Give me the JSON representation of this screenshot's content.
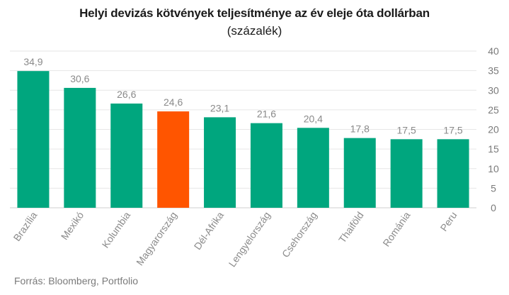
{
  "chart_data": {
    "type": "bar",
    "title": "Helyi devizás kötvények teljesítménye az év eleje óta dollárban",
    "subtitle": "(százalék)",
    "categories": [
      "Brazília",
      "Mexikó",
      "Kolumbia",
      "Magyarország",
      "Dél-Afrika",
      "Lengyelország",
      "Csehország",
      "Thaiföld",
      "Románia",
      "Peru"
    ],
    "values": [
      34.9,
      30.6,
      26.6,
      24.6,
      23.1,
      21.6,
      20.4,
      17.8,
      17.5,
      17.5
    ],
    "value_labels": [
      "34,9",
      "30,6",
      "26,6",
      "24,6",
      "23,1",
      "21,6",
      "20,4",
      "17,8",
      "17,5",
      "17,5"
    ],
    "ylim": [
      0,
      40
    ],
    "yticks": [
      0,
      5,
      10,
      15,
      20,
      25,
      30,
      35,
      40
    ],
    "y_axis_position": "right",
    "grid": true,
    "colors": {
      "default": "#00a67e",
      "highlight": "#ff5500"
    },
    "highlight_category": "Magyarország"
  },
  "source": "Forrás: Bloomberg, Portfolio"
}
